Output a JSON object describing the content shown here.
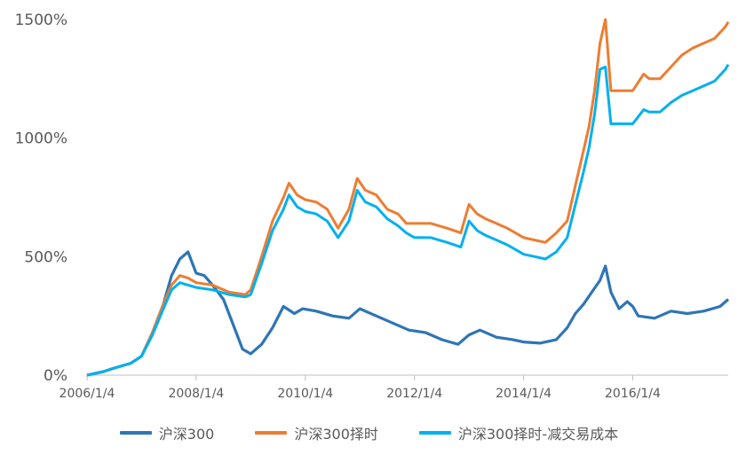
{
  "chart_data": {
    "type": "line",
    "title": "",
    "xlabel": "",
    "ylabel": "",
    "ylim": [
      0,
      1500
    ],
    "y_ticks": [
      "0%",
      "500%",
      "1000%",
      "1500%"
    ],
    "y_tick_values": [
      0,
      500,
      1000,
      1500
    ],
    "x_tick_labels": [
      "2006/1/4",
      "2008/1/4",
      "2010/1/4",
      "2012/1/4",
      "2014/1/4",
      "2016/1/4"
    ],
    "x_tick_values": [
      2006.0,
      2008.0,
      2010.0,
      2012.0,
      2014.0,
      2016.0
    ],
    "xlim": [
      2006.0,
      2017.75
    ],
    "grid": false,
    "legend_position": "bottom",
    "series": [
      {
        "name": "沪深300",
        "color": "#2E75B6",
        "x": [
          2006.0,
          2006.3,
          2006.5,
          2006.8,
          2007.0,
          2007.2,
          2007.4,
          2007.55,
          2007.7,
          2007.85,
          2008.0,
          2008.15,
          2008.3,
          2008.5,
          2008.7,
          2008.85,
          2009.0,
          2009.2,
          2009.4,
          2009.6,
          2009.8,
          2009.95,
          2010.2,
          2010.5,
          2010.8,
          2011.0,
          2011.3,
          2011.6,
          2011.9,
          2012.2,
          2012.5,
          2012.8,
          2013.0,
          2013.2,
          2013.5,
          2013.8,
          2014.0,
          2014.3,
          2014.6,
          2014.8,
          2014.95,
          2015.1,
          2015.25,
          2015.4,
          2015.5,
          2015.6,
          2015.75,
          2015.9,
          2016.0,
          2016.1,
          2016.4,
          2016.7,
          2017.0,
          2017.3,
          2017.6,
          2017.75
        ],
        "values": [
          0,
          15,
          30,
          50,
          80,
          180,
          300,
          420,
          490,
          520,
          430,
          420,
          380,
          320,
          200,
          110,
          90,
          130,
          200,
          290,
          260,
          280,
          270,
          250,
          240,
          280,
          250,
          220,
          190,
          180,
          150,
          130,
          170,
          190,
          160,
          150,
          140,
          135,
          150,
          200,
          260,
          300,
          350,
          400,
          460,
          350,
          280,
          310,
          290,
          250,
          240,
          270,
          260,
          270,
          290,
          320
        ]
      },
      {
        "name": "沪深300择时",
        "color": "#ED7D31",
        "x": [
          2006.0,
          2006.3,
          2006.5,
          2006.8,
          2007.0,
          2007.2,
          2007.4,
          2007.55,
          2007.7,
          2007.85,
          2008.0,
          2008.3,
          2008.6,
          2008.9,
          2009.0,
          2009.2,
          2009.4,
          2009.6,
          2009.7,
          2009.85,
          2010.0,
          2010.2,
          2010.4,
          2010.6,
          2010.8,
          2010.95,
          2011.1,
          2011.3,
          2011.5,
          2011.7,
          2011.85,
          2012.0,
          2012.3,
          2012.6,
          2012.85,
          2013.0,
          2013.15,
          2013.3,
          2013.5,
          2013.7,
          2013.85,
          2014.0,
          2014.2,
          2014.4,
          2014.6,
          2014.8,
          2014.95,
          2015.1,
          2015.2,
          2015.3,
          2015.4,
          2015.5,
          2015.6,
          2015.75,
          2016.0,
          2016.2,
          2016.3,
          2016.5,
          2016.7,
          2016.9,
          2017.1,
          2017.3,
          2017.5,
          2017.7,
          2017.75
        ],
        "values": [
          0,
          15,
          30,
          50,
          80,
          180,
          300,
          380,
          420,
          410,
          390,
          380,
          350,
          340,
          360,
          500,
          650,
          750,
          810,
          760,
          740,
          730,
          700,
          620,
          700,
          830,
          780,
          760,
          700,
          680,
          640,
          640,
          640,
          620,
          600,
          720,
          680,
          660,
          640,
          620,
          600,
          580,
          570,
          560,
          600,
          650,
          800,
          950,
          1050,
          1200,
          1400,
          1500,
          1200,
          1200,
          1200,
          1270,
          1250,
          1250,
          1300,
          1350,
          1380,
          1400,
          1420,
          1470,
          1490
        ]
      },
      {
        "name": "沪深300择时-减交易成本",
        "color": "#00B0F0",
        "x": [
          2006.0,
          2006.3,
          2006.5,
          2006.8,
          2007.0,
          2007.2,
          2007.4,
          2007.55,
          2007.7,
          2007.85,
          2008.0,
          2008.3,
          2008.6,
          2008.9,
          2009.0,
          2009.2,
          2009.4,
          2009.6,
          2009.7,
          2009.85,
          2010.0,
          2010.2,
          2010.4,
          2010.6,
          2010.8,
          2010.95,
          2011.1,
          2011.3,
          2011.5,
          2011.7,
          2011.85,
          2012.0,
          2012.3,
          2012.6,
          2012.85,
          2013.0,
          2013.15,
          2013.3,
          2013.5,
          2013.7,
          2013.85,
          2014.0,
          2014.2,
          2014.4,
          2014.6,
          2014.8,
          2014.95,
          2015.1,
          2015.2,
          2015.3,
          2015.4,
          2015.5,
          2015.6,
          2015.75,
          2016.0,
          2016.2,
          2016.3,
          2016.5,
          2016.7,
          2016.9,
          2017.1,
          2017.3,
          2017.5,
          2017.7,
          2017.75
        ],
        "values": [
          0,
          15,
          30,
          50,
          80,
          170,
          280,
          360,
          390,
          380,
          370,
          360,
          340,
          330,
          340,
          470,
          610,
          700,
          760,
          710,
          690,
          680,
          650,
          580,
          650,
          780,
          730,
          710,
          660,
          630,
          600,
          580,
          580,
          560,
          540,
          650,
          610,
          590,
          570,
          550,
          530,
          510,
          500,
          490,
          520,
          580,
          720,
          860,
          960,
          1100,
          1290,
          1300,
          1060,
          1060,
          1060,
          1120,
          1110,
          1110,
          1150,
          1180,
          1200,
          1220,
          1240,
          1290,
          1310
        ]
      }
    ]
  }
}
